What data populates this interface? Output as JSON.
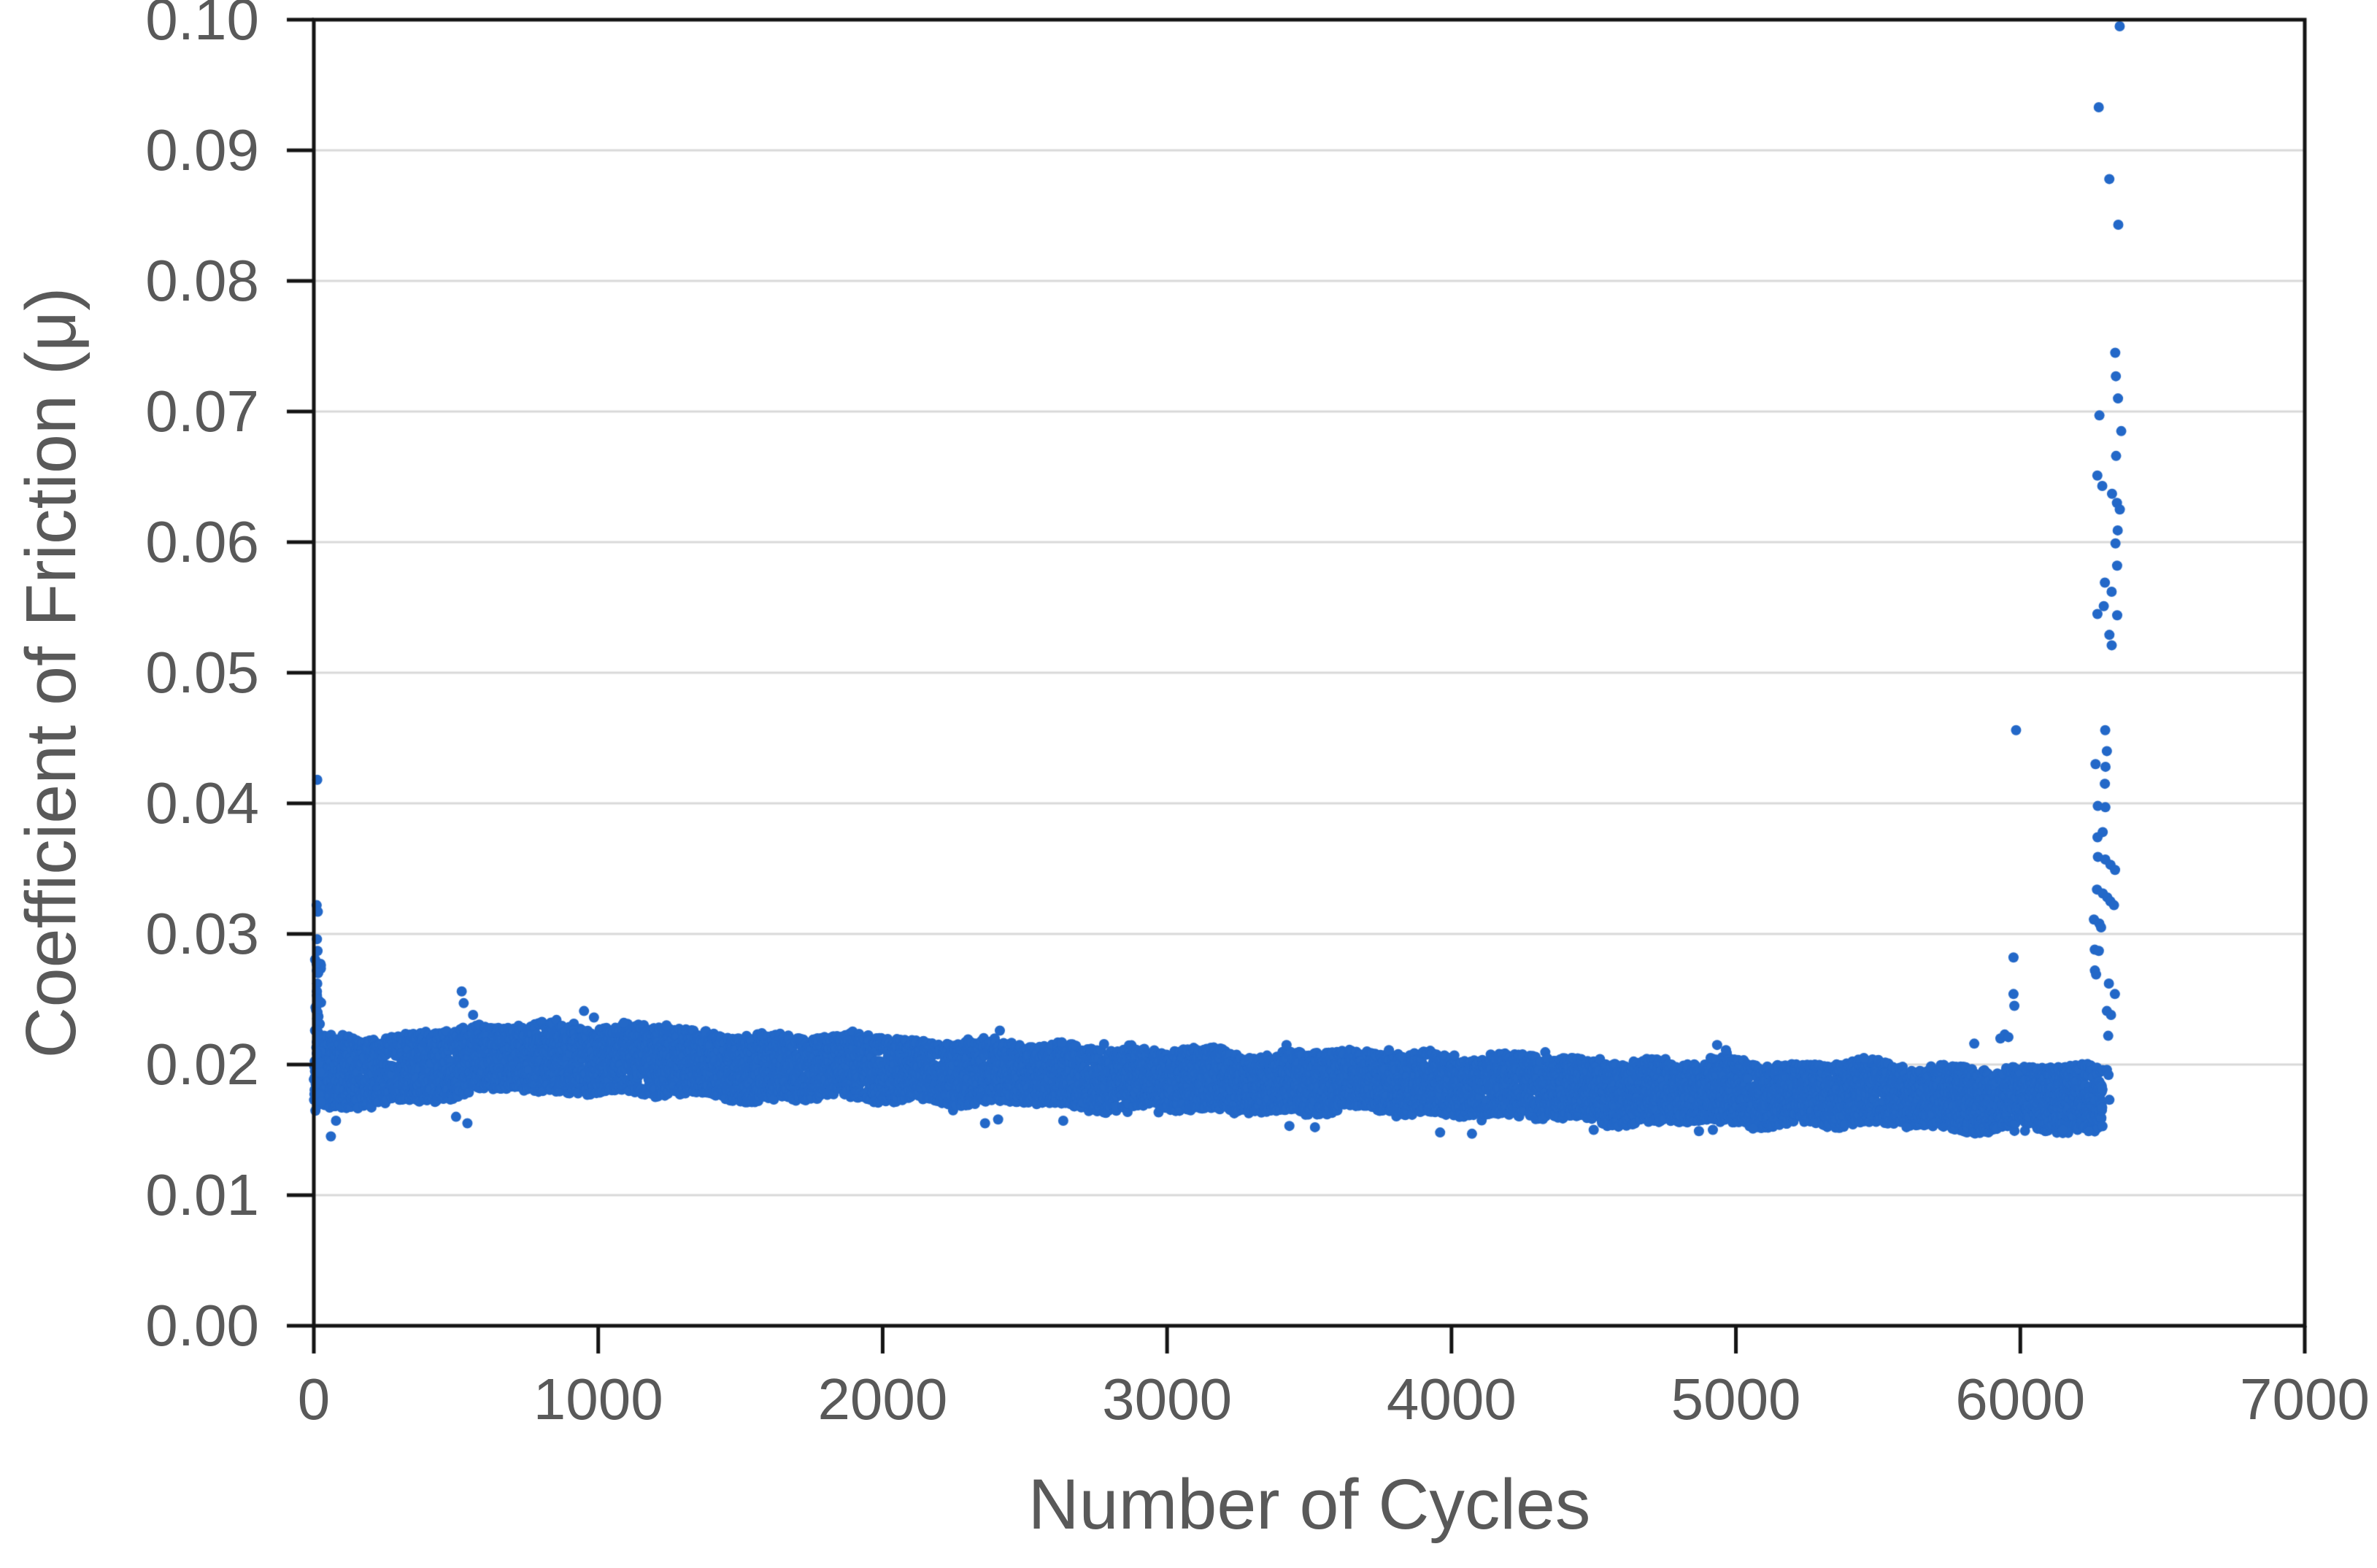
{
  "chart_data": {
    "type": "scatter",
    "title": "",
    "xlabel": "Number of Cycles",
    "ylabel": "Coefficient of Friction (μ)",
    "xlim": [
      0,
      7000
    ],
    "ylim": [
      0.0,
      0.1
    ],
    "x_ticks": [
      0,
      1000,
      2000,
      3000,
      4000,
      5000,
      6000,
      7000
    ],
    "x_tick_labels": [
      "0",
      "1000",
      "2000",
      "3000",
      "4000",
      "5000",
      "6000",
      "7000"
    ],
    "y_ticks": [
      0.0,
      0.01,
      0.02,
      0.03,
      0.04,
      0.05,
      0.06,
      0.07,
      0.08,
      0.09,
      0.1
    ],
    "y_tick_labels": [
      "0.00",
      "0.01",
      "0.02",
      "0.03",
      "0.04",
      "0.05",
      "0.06",
      "0.07",
      "0.08",
      "0.09",
      "0.10"
    ],
    "grid": "horizontal",
    "legend": "none",
    "colors": {
      "marker": "#2368C8",
      "grid": "#D9D9D9",
      "axis": "#141414",
      "tick_text": "#595959",
      "background": "#FFFFFF"
    },
    "marker_radius_px": 7,
    "band": {
      "description": "dense steady-state friction band from ~0 to ~6290 cycles",
      "x_start": 0,
      "x_end": 6290,
      "points_estimate": 10500,
      "center_control_points": [
        [
          0,
          0.0191
        ],
        [
          150,
          0.0195
        ],
        [
          400,
          0.02
        ],
        [
          700,
          0.0204
        ],
        [
          1000,
          0.0204
        ],
        [
          1300,
          0.0201
        ],
        [
          1600,
          0.0199
        ],
        [
          2000,
          0.0197
        ],
        [
          2400,
          0.0192
        ],
        [
          2800,
          0.019
        ],
        [
          3200,
          0.0188
        ],
        [
          3600,
          0.0186
        ],
        [
          4000,
          0.0184
        ],
        [
          4400,
          0.0182
        ],
        [
          4800,
          0.0179
        ],
        [
          5200,
          0.0177
        ],
        [
          5600,
          0.0176
        ],
        [
          6000,
          0.0175
        ],
        [
          6290,
          0.0173
        ]
      ],
      "halfwidth_control_points": [
        [
          0,
          0.0028
        ],
        [
          400,
          0.0026
        ],
        [
          1000,
          0.0026
        ],
        [
          2000,
          0.0024
        ],
        [
          3000,
          0.0023
        ],
        [
          4000,
          0.0023
        ],
        [
          5000,
          0.0024
        ],
        [
          6000,
          0.0024
        ],
        [
          6290,
          0.0026
        ]
      ]
    },
    "start_spike_points": [
      [
        12,
        0.0418
      ],
      [
        10,
        0.0322
      ],
      [
        14,
        0.0317
      ],
      [
        11,
        0.0296
      ],
      [
        13,
        0.0287
      ],
      [
        10,
        0.0277
      ],
      [
        15,
        0.027
      ],
      [
        12,
        0.0262
      ],
      [
        11,
        0.0256
      ],
      [
        14,
        0.025
      ],
      [
        10,
        0.0245
      ],
      [
        13,
        0.024
      ],
      [
        12,
        0.0235
      ],
      [
        15,
        0.023
      ],
      [
        11,
        0.0226
      ],
      [
        13,
        0.0222
      ]
    ],
    "outliers_above": [
      [
        520,
        0.0256
      ],
      [
        527,
        0.0247
      ],
      [
        560,
        0.0238
      ],
      [
        950,
        0.0241
      ],
      [
        985,
        0.0236
      ],
      [
        1090,
        0.0232
      ],
      [
        1240,
        0.023
      ],
      [
        2412,
        0.0226
      ],
      [
        2630,
        0.0217
      ],
      [
        3420,
        0.0215
      ],
      [
        3780,
        0.0211
      ],
      [
        4010,
        0.0207
      ],
      [
        4934,
        0.0215
      ],
      [
        4965,
        0.0211
      ],
      [
        5450,
        0.0205
      ]
    ],
    "outliers_below": [
      [
        60,
        0.0145
      ],
      [
        78,
        0.0157
      ],
      [
        500,
        0.016
      ],
      [
        540,
        0.0155
      ],
      [
        2360,
        0.0155
      ],
      [
        2406,
        0.0158
      ],
      [
        2635,
        0.0157
      ],
      [
        3430,
        0.0153
      ],
      [
        3520,
        0.0152
      ],
      [
        3960,
        0.0148
      ],
      [
        4072,
        0.0147
      ],
      [
        4500,
        0.015
      ],
      [
        4870,
        0.0149
      ],
      [
        4919,
        0.015
      ],
      [
        5060,
        0.0151
      ],
      [
        5600,
        0.0152
      ],
      [
        6150,
        0.015
      ],
      [
        6240,
        0.0149
      ]
    ],
    "pre_failure_points": [
      [
        5838,
        0.0216
      ],
      [
        5930,
        0.022
      ],
      [
        5945,
        0.0223
      ],
      [
        5958,
        0.0221
      ],
      [
        5976,
        0.0282
      ],
      [
        5976,
        0.0254
      ],
      [
        5979,
        0.0245
      ],
      [
        5985,
        0.0456
      ]
    ],
    "failure_spike_points": [
      [
        6351,
        0.0995
      ],
      [
        6279,
        0.0933
      ],
      [
        6316,
        0.0878
      ],
      [
        6346,
        0.0843
      ],
      [
        6338,
        0.0745
      ],
      [
        6339,
        0.0727
      ],
      [
        6340,
        0.071
      ],
      [
        6279,
        0.0697
      ],
      [
        6350,
        0.0685
      ],
      [
        6338,
        0.0666
      ],
      [
        6274,
        0.0651
      ],
      [
        6290,
        0.0643
      ],
      [
        6320,
        0.0637
      ],
      [
        6335,
        0.063
      ],
      [
        6350,
        0.0625
      ],
      [
        6343,
        0.0609
      ],
      [
        6338,
        0.0599
      ],
      [
        6340,
        0.0582
      ],
      [
        6300,
        0.0569
      ],
      [
        6320,
        0.0562
      ],
      [
        6272,
        0.0545
      ],
      [
        6296,
        0.0551
      ],
      [
        6343,
        0.0544
      ],
      [
        6310,
        0.0529
      ],
      [
        6325,
        0.0521
      ],
      [
        6300,
        0.0456
      ],
      [
        6303,
        0.044
      ],
      [
        6268,
        0.043
      ],
      [
        6297,
        0.0428
      ],
      [
        6298,
        0.0415
      ],
      [
        6277,
        0.0398
      ],
      [
        6300,
        0.0397
      ],
      [
        6288,
        0.0378
      ],
      [
        6268,
        0.0374
      ],
      [
        6277,
        0.0359
      ],
      [
        6298,
        0.0357
      ],
      [
        6320,
        0.0353
      ],
      [
        6330,
        0.0349
      ],
      [
        6270,
        0.0334
      ],
      [
        6290,
        0.0331
      ],
      [
        6302,
        0.0328
      ],
      [
        6318,
        0.0325
      ],
      [
        6328,
        0.0322
      ],
      [
        6258,
        0.0311
      ],
      [
        6275,
        0.0308
      ],
      [
        6288,
        0.0305
      ],
      [
        6262,
        0.0288
      ],
      [
        6278,
        0.0287
      ],
      [
        6258,
        0.0272
      ],
      [
        6270,
        0.0269
      ],
      [
        6315,
        0.0262
      ],
      [
        6328,
        0.0254
      ],
      [
        6308,
        0.0241
      ],
      [
        6320,
        0.0238
      ],
      [
        6312,
        0.0222
      ],
      [
        6300,
        0.0196
      ],
      [
        6312,
        0.0192
      ],
      [
        6318,
        0.0173
      ]
    ]
  }
}
